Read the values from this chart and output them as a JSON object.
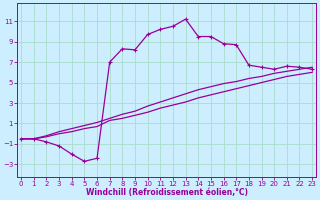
{
  "xlabel": "Windchill (Refroidissement éolien,°C)",
  "bg_color": "#cceeff",
  "grid_color": "#aaddcc",
  "line_color": "#990099",
  "x_ticks": [
    0,
    1,
    2,
    3,
    4,
    5,
    6,
    7,
    8,
    9,
    10,
    11,
    12,
    13,
    14,
    15,
    16,
    17,
    18,
    19,
    20,
    21,
    22,
    23
  ],
  "y_ticks": [
    -3,
    -1,
    1,
    3,
    5,
    7,
    9,
    11
  ],
  "xlim": [
    -0.3,
    23.3
  ],
  "ylim": [
    -4.2,
    12.8
  ],
  "curve1_x": [
    0,
    1,
    2,
    3,
    4,
    5,
    6,
    7,
    8,
    9,
    10,
    11,
    12,
    13,
    14,
    15,
    16,
    17,
    18,
    19,
    20,
    21,
    22,
    23
  ],
  "curve1_y": [
    -0.5,
    -0.5,
    -0.8,
    -1.2,
    -2.0,
    -2.7,
    -2.4,
    7.0,
    8.3,
    8.2,
    9.7,
    10.2,
    10.5,
    11.2,
    9.5,
    9.5,
    8.8,
    8.7,
    6.7,
    6.5,
    6.3,
    6.6,
    6.5,
    6.3
  ],
  "curve2_x": [
    0,
    1,
    2,
    3,
    4,
    5,
    6,
    7,
    8,
    9,
    10,
    11,
    12,
    13,
    14,
    15,
    16,
    17,
    18,
    19,
    20,
    21,
    22,
    23
  ],
  "curve2_y": [
    -0.5,
    -0.5,
    -0.3,
    0.0,
    0.2,
    0.5,
    0.7,
    1.3,
    1.5,
    1.8,
    2.1,
    2.5,
    2.8,
    3.1,
    3.5,
    3.8,
    4.1,
    4.4,
    4.7,
    5.0,
    5.3,
    5.6,
    5.8,
    6.0
  ],
  "curve3_x": [
    0,
    1,
    2,
    3,
    4,
    5,
    6,
    7,
    8,
    9,
    10,
    11,
    12,
    13,
    14,
    15,
    16,
    17,
    18,
    19,
    20,
    21,
    22,
    23
  ],
  "curve3_y": [
    -0.5,
    -0.5,
    -0.2,
    0.2,
    0.5,
    0.8,
    1.1,
    1.5,
    1.9,
    2.2,
    2.7,
    3.1,
    3.5,
    3.9,
    4.3,
    4.6,
    4.9,
    5.1,
    5.4,
    5.6,
    5.9,
    6.1,
    6.3,
    6.5
  ]
}
